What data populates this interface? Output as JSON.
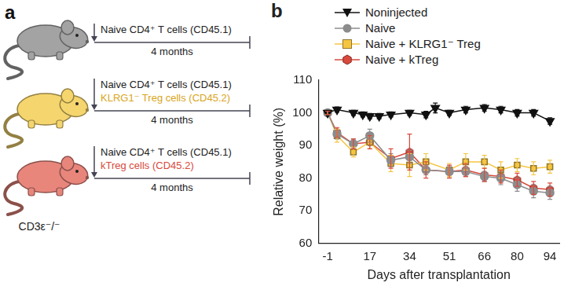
{
  "panels": [
    "a",
    "b"
  ],
  "diagram": {
    "rows": [
      {
        "mouse_color": "#a3a3a3",
        "texts": [
          {
            "text": "Naive CD4⁺ T cells (CD45.1)",
            "color": "#222222"
          }
        ],
        "duration": "4 months"
      },
      {
        "mouse_color": "#f5d56e",
        "texts": [
          {
            "text": "Naive CD4⁺ T cells (CD45.1)",
            "color": "#222222"
          },
          {
            "text": "KLRG1⁻ Treg cells (CD45.2)",
            "color": "#d9a520"
          }
        ],
        "duration": "4 months"
      },
      {
        "mouse_color": "#e8867c",
        "texts": [
          {
            "text": "Naive CD4⁺ T cells (CD45.1)",
            "color": "#222222"
          },
          {
            "text": "kTreg cells (CD45.2)",
            "color": "#d9493c"
          }
        ],
        "duration": "4 months"
      }
    ],
    "mouse_label": "CD3ε⁻/⁻"
  },
  "chart_data": {
    "type": "line",
    "x_label": "Days after transplantation",
    "y_label": "Relative weight (%)",
    "xlim": [
      -5,
      98
    ],
    "xticks": [
      -1,
      17,
      34,
      51,
      66,
      80,
      94
    ],
    "ylim": [
      60,
      110
    ],
    "yticks": [
      60,
      70,
      80,
      90,
      100,
      110
    ],
    "grid": false,
    "legend": "top",
    "series": [
      {
        "name": "Noninjected",
        "color": "#111111",
        "marker": "triangle-down",
        "x": [
          -1,
          3,
          10,
          14,
          17,
          21,
          26,
          34,
          41,
          45,
          51,
          58,
          66,
          73,
          80,
          87,
          94
        ],
        "values": [
          100,
          101,
          100,
          99.5,
          99,
          99,
          99.5,
          100,
          99.5,
          101.5,
          100,
          101,
          101.5,
          101,
          100,
          100,
          97.5
        ],
        "errors": [
          0.5,
          0.8,
          0.8,
          0.8,
          0.8,
          0.8,
          0.8,
          0.8,
          1,
          1.5,
          0.8,
          1,
          1,
          1,
          1,
          1,
          1
        ]
      },
      {
        "name": "Naive",
        "color": "#8c8c8c",
        "marker": "circle",
        "x": [
          -1,
          3,
          10,
          17,
          26,
          34,
          41,
          51,
          58,
          66,
          73,
          80,
          87,
          94
        ],
        "values": [
          100,
          93.5,
          90.5,
          93,
          85.5,
          86.5,
          82.5,
          82,
          82,
          80.5,
          80,
          78,
          76,
          75.5
        ],
        "errors": [
          0.5,
          1.5,
          1.5,
          2,
          2,
          2,
          1.5,
          1.5,
          1.5,
          1.5,
          2,
          2,
          2,
          2
        ]
      },
      {
        "name": "Naive + KLRG1⁻ Treg",
        "color": "#f5c542",
        "marker": "square",
        "x": [
          -1,
          3,
          10,
          17,
          26,
          34,
          41,
          51,
          58,
          66,
          73,
          80,
          87,
          94
        ],
        "values": [
          100,
          93,
          88,
          91,
          84.5,
          84,
          85,
          82.5,
          85,
          85,
          82.5,
          84,
          83,
          83.5
        ],
        "errors": [
          0.5,
          2,
          1.5,
          2,
          2.5,
          3.5,
          2.5,
          2,
          2.5,
          2,
          2.5,
          2,
          2,
          2
        ]
      },
      {
        "name": "Naive + kTreg",
        "color": "#d9493c",
        "marker": "hexagon",
        "x": [
          -1,
          3,
          10,
          17,
          26,
          34,
          41,
          51,
          58,
          66,
          73,
          80,
          87,
          94
        ],
        "values": [
          100,
          94,
          90.5,
          91,
          86,
          88,
          82.5,
          82,
          82.5,
          81,
          80.5,
          79.5,
          77,
          76.5
        ],
        "errors": [
          0.5,
          1.5,
          1.5,
          2,
          3,
          5.5,
          2.5,
          2,
          2,
          2,
          2,
          2,
          2,
          2
        ]
      }
    ]
  }
}
